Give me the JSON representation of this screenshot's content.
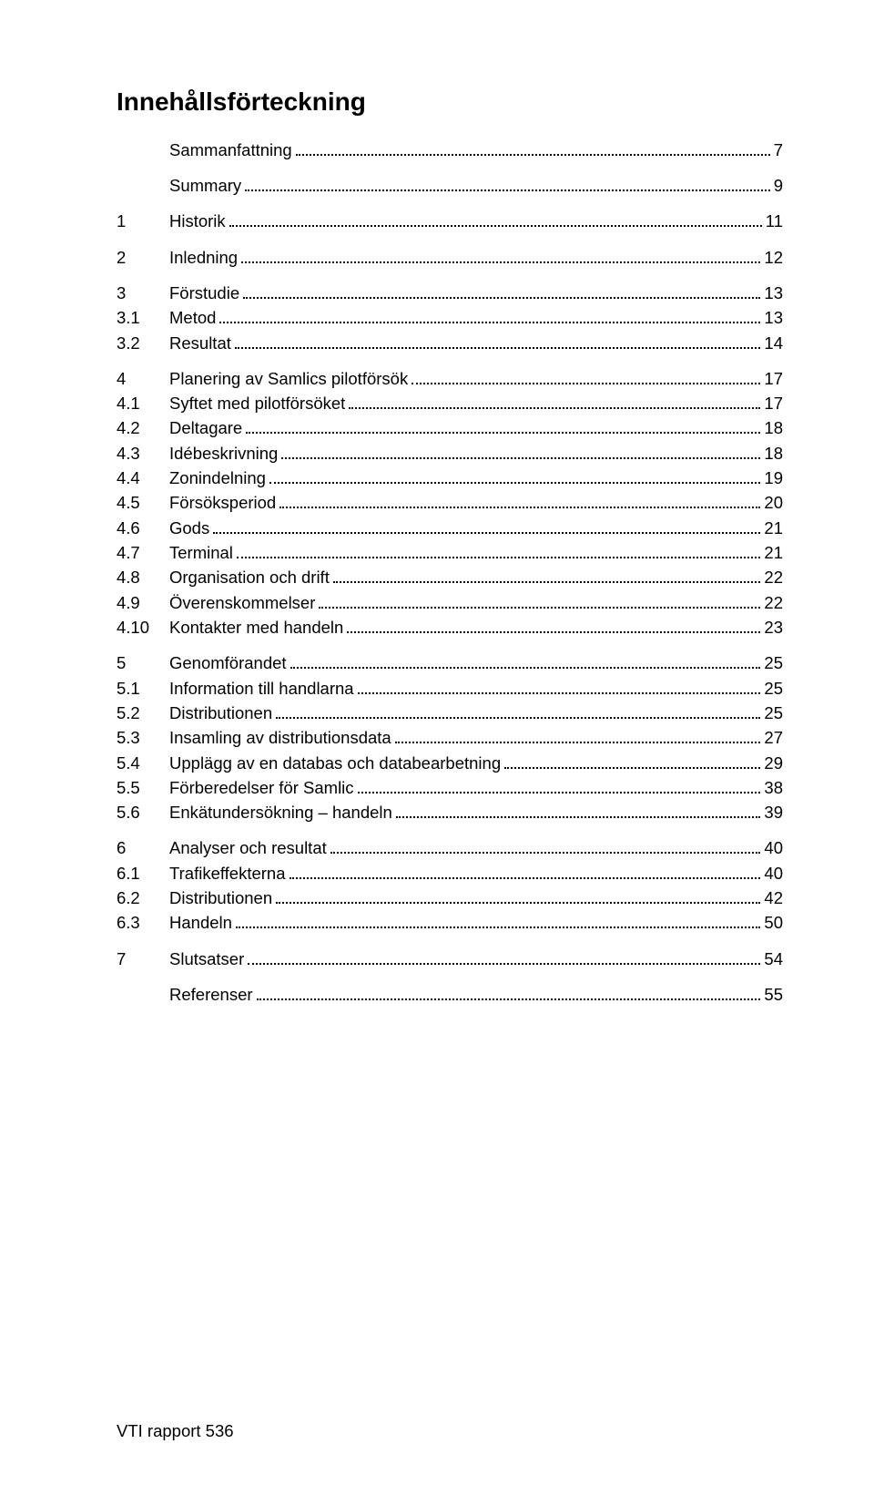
{
  "title": "Innehållsförteckning",
  "footer": "VTI rapport 536",
  "toc": [
    {
      "num": "",
      "label": "Sammanfattning",
      "page": "7",
      "section": true
    },
    {
      "num": "",
      "label": "Summary",
      "page": "9",
      "section": true
    },
    {
      "num": "1",
      "label": "Historik",
      "page": "11",
      "section": true
    },
    {
      "num": "2",
      "label": "Inledning",
      "page": "12",
      "section": true
    },
    {
      "num": "3",
      "label": "Förstudie",
      "page": "13",
      "section": true
    },
    {
      "num": "3.1",
      "label": "Metod",
      "page": "13"
    },
    {
      "num": "3.2",
      "label": "Resultat",
      "page": "14"
    },
    {
      "num": "4",
      "label": "Planering av Samlics pilotförsök",
      "page": "17",
      "section": true
    },
    {
      "num": "4.1",
      "label": "Syftet med pilotförsöket",
      "page": "17"
    },
    {
      "num": "4.2",
      "label": "Deltagare",
      "page": "18"
    },
    {
      "num": "4.3",
      "label": "Idébeskrivning",
      "page": "18"
    },
    {
      "num": "4.4",
      "label": "Zonindelning",
      "page": "19"
    },
    {
      "num": "4.5",
      "label": "Försöksperiod",
      "page": "20"
    },
    {
      "num": "4.6",
      "label": "Gods",
      "page": "21"
    },
    {
      "num": "4.7",
      "label": "Terminal",
      "page": "21"
    },
    {
      "num": "4.8",
      "label": "Organisation och drift",
      "page": "22"
    },
    {
      "num": "4.9",
      "label": "Överenskommelser",
      "page": "22"
    },
    {
      "num": "4.10",
      "label": "Kontakter med handeln",
      "page": "23"
    },
    {
      "num": "5",
      "label": "Genomförandet",
      "page": "25",
      "section": true
    },
    {
      "num": "5.1",
      "label": "Information till handlarna",
      "page": "25"
    },
    {
      "num": "5.2",
      "label": "Distributionen",
      "page": "25"
    },
    {
      "num": "5.3",
      "label": "Insamling av distributionsdata",
      "page": "27"
    },
    {
      "num": "5.4",
      "label": "Upplägg av en databas och databearbetning",
      "page": "29"
    },
    {
      "num": "5.5",
      "label": "Förberedelser för Samlic",
      "page": "38"
    },
    {
      "num": "5.6",
      "label": "Enkätundersökning – handeln",
      "page": "39"
    },
    {
      "num": "6",
      "label": "Analyser och resultat",
      "page": "40",
      "section": true
    },
    {
      "num": "6.1",
      "label": "Trafikeffekterna",
      "page": "40"
    },
    {
      "num": "6.2",
      "label": "Distributionen",
      "page": "42"
    },
    {
      "num": "6.3",
      "label": "Handeln",
      "page": "50"
    },
    {
      "num": "7",
      "label": "Slutsatser",
      "page": "54",
      "section": true
    },
    {
      "num": "",
      "label": "Referenser",
      "page": "55",
      "section": true
    }
  ]
}
